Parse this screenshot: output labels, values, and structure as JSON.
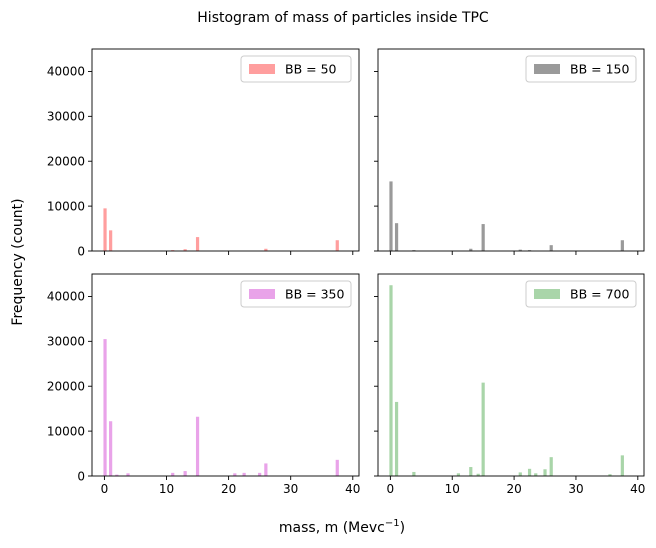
{
  "figure": {
    "title": "Histogram of mass of particles inside TPC",
    "xlabel_main": "mass, m (Mevc",
    "xlabel_sup": "−1",
    "xlabel_close": ")",
    "ylabel": "Frequency (count)"
  },
  "chart_data": [
    {
      "type": "bar",
      "legend": "BB = 50",
      "color": "#ff9e9e",
      "xlim": [
        -2,
        41
      ],
      "ylim": [
        0,
        45000
      ],
      "xticks": [
        0,
        10,
        20,
        30,
        40
      ],
      "yticks": [
        0,
        10000,
        20000,
        30000,
        40000
      ],
      "legend_position": "top-right",
      "bins": [
        {
          "x": 0.1,
          "y": 9500
        },
        {
          "x": 1.0,
          "y": 4600
        },
        {
          "x": 11.0,
          "y": 200
        },
        {
          "x": 13.0,
          "y": 400
        },
        {
          "x": 15.0,
          "y": 3100
        },
        {
          "x": 26.0,
          "y": 500
        },
        {
          "x": 37.5,
          "y": 2400
        }
      ]
    },
    {
      "type": "bar",
      "legend": "BB = 150",
      "color": "#9a9a9a",
      "xlim": [
        -2,
        41
      ],
      "ylim": [
        0,
        45000
      ],
      "xticks": [
        0,
        10,
        20,
        30,
        40
      ],
      "yticks": [
        0,
        10000,
        20000,
        30000,
        40000
      ],
      "legend_position": "top-right",
      "bins": [
        {
          "x": 0.1,
          "y": 15500
        },
        {
          "x": 1.0,
          "y": 6200
        },
        {
          "x": 3.8,
          "y": 200
        },
        {
          "x": 13.0,
          "y": 500
        },
        {
          "x": 15.0,
          "y": 6000
        },
        {
          "x": 21.0,
          "y": 300
        },
        {
          "x": 22.5,
          "y": 200
        },
        {
          "x": 26.0,
          "y": 1300
        },
        {
          "x": 37.5,
          "y": 2400
        }
      ]
    },
    {
      "type": "bar",
      "legend": "BB = 350",
      "color": "#e9a3e9",
      "xlim": [
        -2,
        41
      ],
      "ylim": [
        0,
        45000
      ],
      "xticks": [
        0,
        10,
        20,
        30,
        40
      ],
      "yticks": [
        0,
        10000,
        20000,
        30000,
        40000
      ],
      "legend_position": "top-right",
      "bins": [
        {
          "x": 0.1,
          "y": 30500
        },
        {
          "x": 1.0,
          "y": 12200
        },
        {
          "x": 2.0,
          "y": 300
        },
        {
          "x": 3.8,
          "y": 600
        },
        {
          "x": 11.0,
          "y": 700
        },
        {
          "x": 13.0,
          "y": 1100
        },
        {
          "x": 15.0,
          "y": 13200
        },
        {
          "x": 21.0,
          "y": 600
        },
        {
          "x": 22.5,
          "y": 700
        },
        {
          "x": 25.0,
          "y": 700
        },
        {
          "x": 26.0,
          "y": 2800
        },
        {
          "x": 37.5,
          "y": 3600
        }
      ]
    },
    {
      "type": "bar",
      "legend": "BB = 700",
      "color": "#a9d5a9",
      "xlim": [
        -2,
        41
      ],
      "ylim": [
        0,
        45000
      ],
      "xticks": [
        0,
        10,
        20,
        30,
        40
      ],
      "yticks": [
        0,
        10000,
        20000,
        30000,
        40000
      ],
      "legend_position": "top-right",
      "bins": [
        {
          "x": 0.1,
          "y": 42500
        },
        {
          "x": 1.0,
          "y": 16500
        },
        {
          "x": 3.8,
          "y": 900
        },
        {
          "x": 11.0,
          "y": 600
        },
        {
          "x": 13.0,
          "y": 2000
        },
        {
          "x": 14.2,
          "y": 500
        },
        {
          "x": 15.0,
          "y": 20800
        },
        {
          "x": 21.0,
          "y": 800
        },
        {
          "x": 22.5,
          "y": 1600
        },
        {
          "x": 23.5,
          "y": 600
        },
        {
          "x": 25.0,
          "y": 1500
        },
        {
          "x": 26.0,
          "y": 4200
        },
        {
          "x": 35.5,
          "y": 400
        },
        {
          "x": 37.5,
          "y": 4600
        }
      ]
    }
  ]
}
